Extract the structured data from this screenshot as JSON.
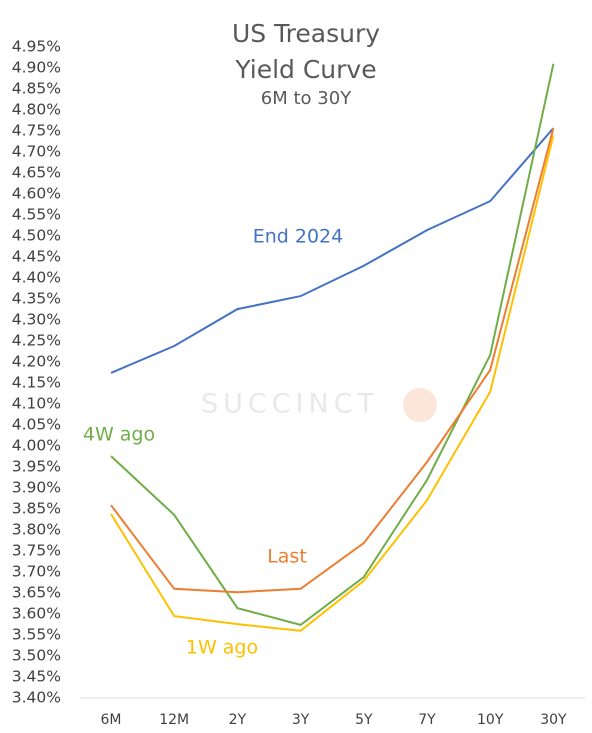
{
  "chart_data": {
    "type": "line",
    "title": "US Treasury Yield Curve",
    "subtitle": "6M to 30Y",
    "watermark": "SUCCINCT",
    "categories": [
      "6M",
      "12M",
      "2Y",
      "3Y",
      "5Y",
      "7Y",
      "10Y",
      "30Y"
    ],
    "series": [
      {
        "name": "End 2024",
        "color": "#4472c4",
        "values": [
          4.174,
          4.238,
          4.326,
          4.357,
          4.429,
          4.514,
          4.583,
          4.757
        ]
      },
      {
        "name": "4W ago",
        "color": "#70ad47",
        "values": [
          3.976,
          3.836,
          3.614,
          3.574,
          3.688,
          3.919,
          4.217,
          4.91
        ]
      },
      {
        "name": "Last",
        "color": "#ed7d31",
        "values": [
          3.859,
          3.66,
          3.652,
          3.66,
          3.769,
          3.962,
          4.181,
          4.757
        ]
      },
      {
        "name": "1W ago",
        "color": "#ffc000",
        "values": [
          3.838,
          3.595,
          3.576,
          3.56,
          3.679,
          3.871,
          4.129,
          4.74
        ]
      }
    ],
    "ylim": [
      3.4,
      4.95
    ],
    "yticks": [
      {
        "value": 3.4,
        "label": "3.40%"
      },
      {
        "value": 3.45,
        "label": "3.45%"
      },
      {
        "value": 3.5,
        "label": "3.50%"
      },
      {
        "value": 3.55,
        "label": "3.55%"
      },
      {
        "value": 3.6,
        "label": "3.60%"
      },
      {
        "value": 3.65,
        "label": "3.65%"
      },
      {
        "value": 3.7,
        "label": "3.70%"
      },
      {
        "value": 3.75,
        "label": "3.75%"
      },
      {
        "value": 3.8,
        "label": "3.80%"
      },
      {
        "value": 3.85,
        "label": "3.85%"
      },
      {
        "value": 3.9,
        "label": "3.90%"
      },
      {
        "value": 3.95,
        "label": "3.95%"
      },
      {
        "value": 4.0,
        "label": "4.00%"
      },
      {
        "value": 4.05,
        "label": "4.05%"
      },
      {
        "value": 4.1,
        "label": "4.10%"
      },
      {
        "value": 4.15,
        "label": "4.15%"
      },
      {
        "value": 4.2,
        "label": "4.20%"
      },
      {
        "value": 4.25,
        "label": "4.25%"
      },
      {
        "value": 4.3,
        "label": "4.30%"
      },
      {
        "value": 4.35,
        "label": "4.35%"
      },
      {
        "value": 4.4,
        "label": "4.40%"
      },
      {
        "value": 4.45,
        "label": "4.45%"
      },
      {
        "value": 4.5,
        "label": "4.50%"
      },
      {
        "value": 4.55,
        "label": "4.55%"
      },
      {
        "value": 4.6,
        "label": "4.60%"
      },
      {
        "value": 4.65,
        "label": "4.65%"
      },
      {
        "value": 4.7,
        "label": "4.70%"
      },
      {
        "value": 4.75,
        "label": "4.75%"
      },
      {
        "value": 4.8,
        "label": "4.80%"
      },
      {
        "value": 4.85,
        "label": "4.85%"
      },
      {
        "value": 4.9,
        "label": "4.90%"
      },
      {
        "value": 4.95,
        "label": "4.95%"
      }
    ],
    "grid": false
  }
}
